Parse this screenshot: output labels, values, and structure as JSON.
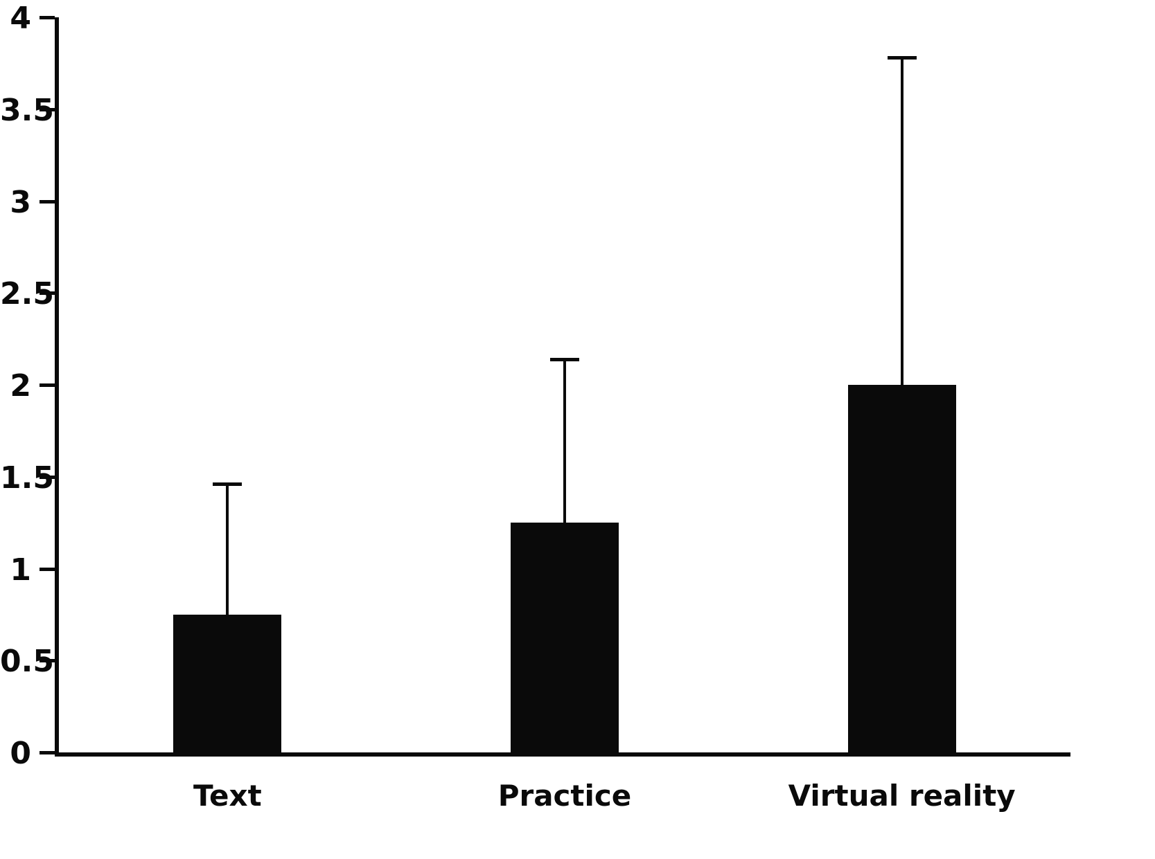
{
  "chart_data": {
    "type": "bar",
    "title": "",
    "xlabel": "",
    "ylabel": "",
    "categories": [
      "Text",
      "Practice",
      "Virtual reality"
    ],
    "values": [
      0.75,
      1.25,
      2.0
    ],
    "errors_upper": [
      0.71,
      0.89,
      1.78
    ],
    "ylim": [
      0,
      4
    ],
    "yticks": [
      "0",
      "0.5",
      "1",
      "1.5",
      "2",
      "2.5",
      "3",
      "3.5",
      "4"
    ],
    "ytick_values": [
      0,
      0.5,
      1,
      1.5,
      2,
      2.5,
      3,
      3.5,
      4
    ],
    "grid": false,
    "legend": false,
    "bar_color": "#0a0a0a",
    "axis_color": "#0a0a0a"
  }
}
